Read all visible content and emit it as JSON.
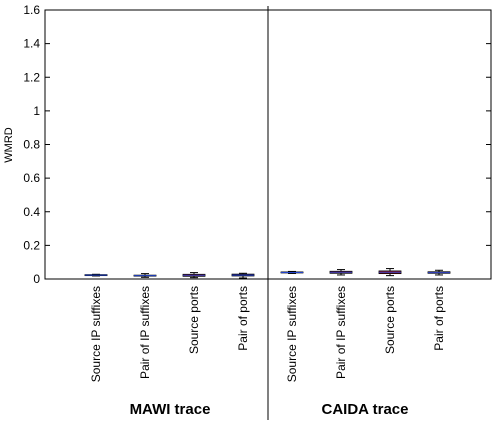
{
  "chart_data": {
    "type": "box",
    "ylabel": "WMRD",
    "ylim": [
      0,
      1.6
    ],
    "yticks": [
      "0",
      "0.2",
      "0.4",
      "0.6",
      "0.8",
      "1",
      "1.2",
      "1.4",
      "1.6"
    ],
    "ytick_values": [
      0,
      0.2,
      0.4,
      0.6,
      0.8,
      1,
      1.2,
      1.4,
      1.6
    ],
    "groups": [
      {
        "label": "MAWI trace",
        "categories": [
          "Source IP suffixes",
          "Pair of IP suffixes",
          "Source ports",
          "Pair of ports"
        ],
        "boxes": [
          {
            "q1": 0.02,
            "median": 0.023,
            "q3": 0.026,
            "min": 0.018,
            "max": 0.028,
            "fill": "#7a2fa0"
          },
          {
            "q1": 0.018,
            "median": 0.02,
            "q3": 0.023,
            "min": 0.01,
            "max": 0.032,
            "fill": "#cc1111"
          },
          {
            "q1": 0.016,
            "median": 0.022,
            "q3": 0.028,
            "min": 0.008,
            "max": 0.038,
            "fill": "#cc1111"
          },
          {
            "q1": 0.018,
            "median": 0.023,
            "q3": 0.029,
            "min": 0.006,
            "max": 0.034,
            "fill": "#7a2fa0"
          }
        ]
      },
      {
        "label": "CAIDA trace",
        "categories": [
          "Source IP suffixes",
          "Pair of IP suffixes",
          "Source ports",
          "Pair of ports"
        ],
        "boxes": [
          {
            "q1": 0.036,
            "median": 0.039,
            "q3": 0.042,
            "min": 0.033,
            "max": 0.045,
            "fill": "#5a1010"
          },
          {
            "q1": 0.034,
            "median": 0.04,
            "q3": 0.046,
            "min": 0.024,
            "max": 0.056,
            "fill": "#cc1111"
          },
          {
            "q1": 0.032,
            "median": 0.04,
            "q3": 0.048,
            "min": 0.02,
            "max": 0.062,
            "fill": "#cc1111"
          },
          {
            "q1": 0.034,
            "median": 0.038,
            "q3": 0.043,
            "min": 0.024,
            "max": 0.052,
            "fill": "#cc1111"
          }
        ]
      }
    ],
    "whisker_color": "#000000",
    "median_color": "#2244cc",
    "separator": true,
    "grid": false
  }
}
